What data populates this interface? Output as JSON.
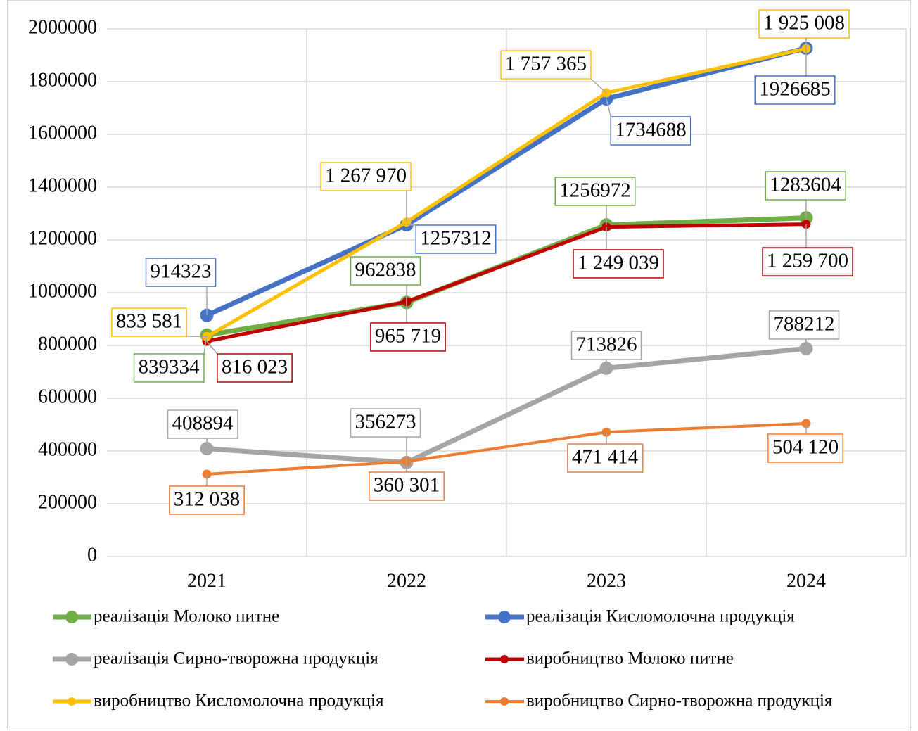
{
  "chart_data": {
    "type": "line",
    "categories": [
      "2021",
      "2022",
      "2023",
      "2024"
    ],
    "ylim": [
      0,
      2000000
    ],
    "yticks": [
      0,
      200000,
      400000,
      600000,
      800000,
      1000000,
      1200000,
      1400000,
      1600000,
      1800000,
      2000000
    ],
    "grid": true,
    "legend": "bottom",
    "series": [
      {
        "name": "реалізація Молоко питне",
        "color": "#70ad47",
        "values": [
          839334,
          962838,
          1256972,
          1283604
        ]
      },
      {
        "name": "реалізація Кисломолочна продукція",
        "color": "#4472c4",
        "values": [
          914323,
          1257312,
          1734688,
          1926685
        ]
      },
      {
        "name": "реалізація Сирно-творожна продукція",
        "color": "#a5a5a5",
        "values": [
          408894,
          356273,
          713826,
          788212
        ]
      },
      {
        "name": "виробництво Молоко питне",
        "color": "#c00000",
        "values": [
          816023,
          965719,
          1249039,
          1259700
        ],
        "value_labels": [
          "816 023",
          "965 719",
          "1 249 039",
          "1 259 700"
        ]
      },
      {
        "name": "виробництво Кисломолочна продукція",
        "color": "#ffc000",
        "values": [
          833581,
          1267970,
          1757365,
          1925008
        ],
        "value_labels": [
          "833 581",
          "1 267 970",
          "1 757 365",
          "1 925 008"
        ]
      },
      {
        "name": "виробництво Сирно-творожна продукція",
        "color": "#ed7d31",
        "values": [
          312038,
          360301,
          471414,
          504120
        ],
        "value_labels": [
          "312 038",
          "360 301",
          "471 414",
          "504 120"
        ]
      }
    ]
  }
}
